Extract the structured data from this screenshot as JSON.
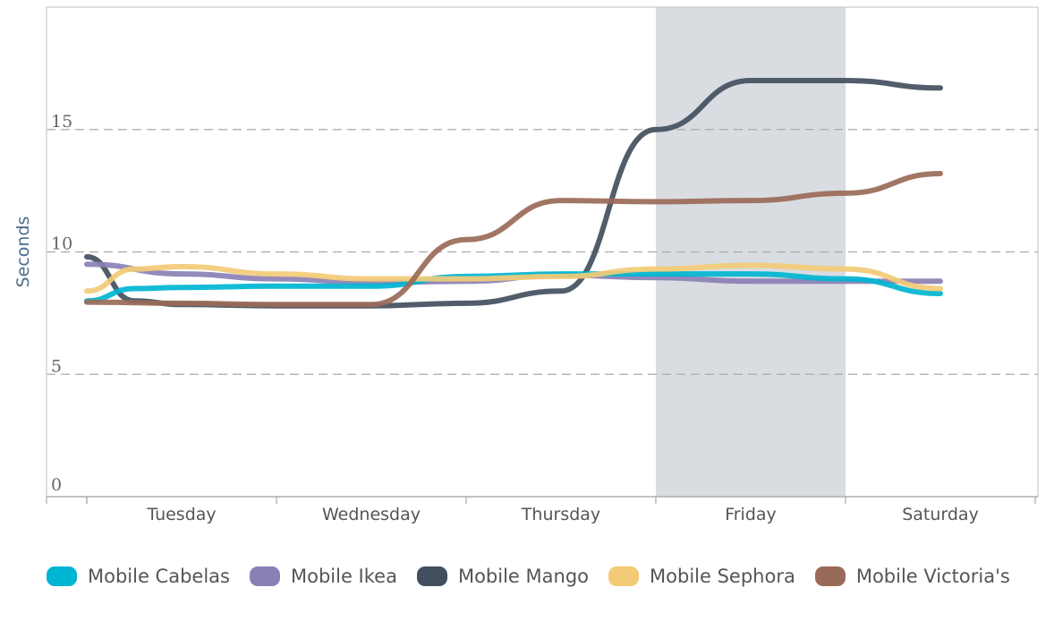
{
  "chart_data": {
    "type": "line",
    "title": "",
    "xlabel": "",
    "ylabel": "Seconds",
    "categories": [
      "Tuesday",
      "Wednesday",
      "Thursday",
      "Friday",
      "Saturday"
    ],
    "ylim": [
      0,
      20
    ],
    "yticks": [
      0,
      5,
      10,
      15
    ],
    "grid": true,
    "legend_position": "bottom",
    "highlighted_category": "Friday",
    "series": [
      {
        "name": "Mobile Cabelas",
        "color": "#00b5d1",
        "x": [
          -0.5,
          -0.25,
          0,
          0.5,
          1,
          1.5,
          2,
          2.5,
          3,
          3.5,
          4
        ],
        "values": [
          8.0,
          8.5,
          8.55,
          8.6,
          8.6,
          9.0,
          9.1,
          9.1,
          9.1,
          8.9,
          8.3
        ]
      },
      {
        "name": "Mobile Ikea",
        "color": "#8b80b5",
        "x": [
          -0.5,
          0,
          0.5,
          1,
          1.5,
          2,
          2.5,
          3,
          3.5,
          4
        ],
        "values": [
          9.5,
          9.1,
          8.9,
          8.75,
          8.8,
          9.05,
          8.95,
          8.8,
          8.8,
          8.8
        ]
      },
      {
        "name": "Mobile Mango",
        "color": "#434f5e",
        "x": [
          -0.5,
          -0.25,
          0,
          0.5,
          1,
          1.5,
          2,
          2.5,
          3,
          3.5,
          4
        ],
        "values": [
          9.8,
          8.0,
          7.85,
          7.8,
          7.8,
          7.9,
          8.4,
          15.0,
          17.0,
          17.0,
          16.7
        ]
      },
      {
        "name": "Mobile Sephora",
        "color": "#f3cb77",
        "x": [
          -0.5,
          -0.25,
          0,
          0.5,
          1,
          1.5,
          2,
          2.5,
          3,
          3.5,
          4
        ],
        "values": [
          8.4,
          9.3,
          9.4,
          9.1,
          8.9,
          8.9,
          9.0,
          9.3,
          9.45,
          9.3,
          8.5
        ]
      },
      {
        "name": "Mobile Victoria's",
        "color": "#9a6a58",
        "x": [
          -0.5,
          0,
          0.5,
          1,
          1.5,
          2,
          2.5,
          3,
          3.5,
          4
        ],
        "values": [
          7.95,
          7.9,
          7.85,
          7.85,
          10.5,
          12.1,
          12.05,
          12.1,
          12.4,
          13.2
        ]
      }
    ]
  }
}
